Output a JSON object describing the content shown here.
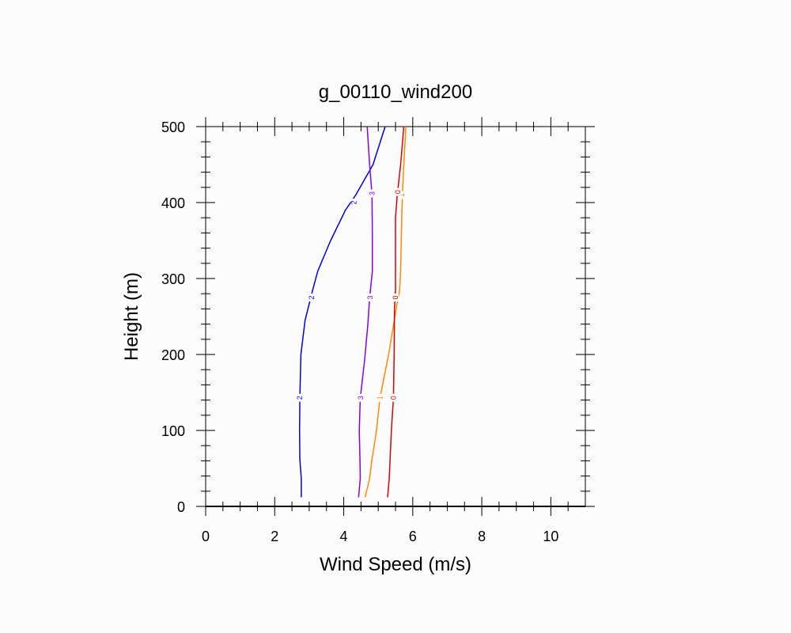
{
  "chart_data": {
    "type": "line",
    "title": "g_00110_wind200",
    "xlabel": "Wind Speed (m/s)",
    "ylabel": "Height (m)",
    "xlim": [
      0,
      11
    ],
    "ylim": [
      0,
      500
    ],
    "xticks": [
      0,
      2,
      4,
      6,
      8,
      10
    ],
    "yticks": [
      0,
      100,
      200,
      300,
      400,
      500
    ],
    "x_tick_labels": [
      "0",
      "2",
      "4",
      "6",
      "8",
      "10"
    ],
    "y_tick_labels": [
      "0",
      "100",
      "200",
      "300",
      "400",
      "500"
    ],
    "grid": false,
    "series": [
      {
        "name": "2",
        "color": "#0000dd",
        "points": [
          [
            2.77,
            12
          ],
          [
            2.77,
            37
          ],
          [
            2.73,
            62
          ],
          [
            2.72,
            100
          ],
          [
            2.73,
            143
          ],
          [
            2.76,
            200
          ],
          [
            2.88,
            245
          ],
          [
            3.1,
            285
          ],
          [
            3.25,
            310
          ],
          [
            3.62,
            350
          ],
          [
            4.05,
            390
          ],
          [
            4.35,
            410
          ],
          [
            4.85,
            450
          ],
          [
            5.2,
            500
          ]
        ]
      },
      {
        "name": "3",
        "color": "#8800dd",
        "points": [
          [
            4.43,
            12
          ],
          [
            4.48,
            37
          ],
          [
            4.47,
            62
          ],
          [
            4.45,
            100
          ],
          [
            4.48,
            143
          ],
          [
            4.6,
            190
          ],
          [
            4.7,
            240
          ],
          [
            4.75,
            275
          ],
          [
            4.83,
            310
          ],
          [
            4.83,
            350
          ],
          [
            4.82,
            410
          ],
          [
            4.75,
            450
          ],
          [
            4.68,
            500
          ]
        ]
      },
      {
        "name": "1",
        "color": "#ff8800",
        "points": [
          [
            4.62,
            12
          ],
          [
            4.75,
            37
          ],
          [
            4.82,
            62
          ],
          [
            4.95,
            100
          ],
          [
            5.05,
            143
          ],
          [
            5.3,
            200
          ],
          [
            5.52,
            260
          ],
          [
            5.62,
            285
          ],
          [
            5.65,
            310
          ],
          [
            5.68,
            380
          ],
          [
            5.7,
            410
          ],
          [
            5.74,
            450
          ],
          [
            5.8,
            500
          ]
        ]
      },
      {
        "name": "0",
        "color": "#dd0000",
        "points": [
          [
            5.27,
            12
          ],
          [
            5.32,
            37
          ],
          [
            5.38,
            100
          ],
          [
            5.44,
            143
          ],
          [
            5.46,
            200
          ],
          [
            5.47,
            260
          ],
          [
            5.5,
            285
          ],
          [
            5.5,
            310
          ],
          [
            5.5,
            380
          ],
          [
            5.55,
            410
          ],
          [
            5.65,
            450
          ],
          [
            5.74,
            500
          ]
        ]
      }
    ],
    "line_labels": [
      {
        "series": "2",
        "x": 2.73,
        "y": 143,
        "text": "2"
      },
      {
        "series": "2",
        "x": 3.07,
        "y": 275,
        "text": "2"
      },
      {
        "series": "2",
        "x": 4.3,
        "y": 400,
        "text": "2"
      },
      {
        "series": "3",
        "x": 4.49,
        "y": 143,
        "text": "3"
      },
      {
        "series": "3",
        "x": 4.77,
        "y": 275,
        "text": "3"
      },
      {
        "series": "3",
        "x": 4.82,
        "y": 412,
        "text": "3"
      },
      {
        "series": "1",
        "x": 5.05,
        "y": 143,
        "text": "1"
      },
      {
        "series": "1",
        "x": 5.68,
        "y": 410,
        "text": "1"
      },
      {
        "series": "0",
        "x": 5.44,
        "y": 143,
        "text": "0"
      },
      {
        "series": "0",
        "x": 5.5,
        "y": 275,
        "text": "0"
      },
      {
        "series": "0",
        "x": 5.57,
        "y": 414,
        "text": "0"
      }
    ]
  }
}
